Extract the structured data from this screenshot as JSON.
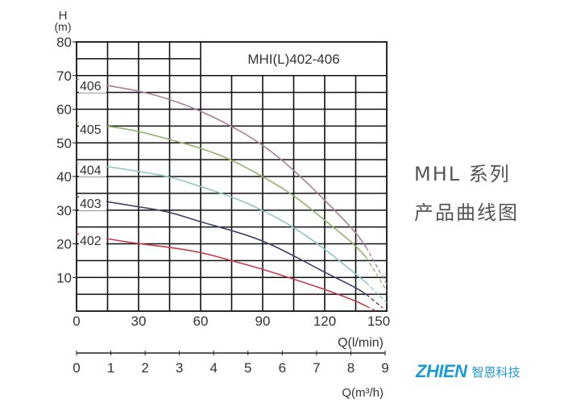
{
  "chart_data": {
    "type": "line",
    "title": "MHI(L)402-406",
    "ylabel_top": "H",
    "ylabel_unit": "(m)",
    "xlabel": "Q(l/min)",
    "xlabel2": "Q(m³/h)",
    "xlim": [
      0,
      150
    ],
    "ylim": [
      0,
      80
    ],
    "x2lim": [
      0,
      9
    ],
    "grid": true,
    "x_ticks": [
      "0",
      "30",
      "60",
      "90",
      "120",
      "150"
    ],
    "y_ticks": [
      "10",
      "20",
      "30",
      "40",
      "50",
      "60",
      "70",
      "80"
    ],
    "x2_ticks": [
      "0",
      "1",
      "2",
      "3",
      "4",
      "5",
      "6",
      "7",
      "8",
      "9"
    ],
    "series": [
      {
        "name": "406",
        "color": "#a8809a",
        "x": [
          0,
          15,
          30,
          45,
          60,
          75,
          90,
          105,
          120,
          135,
          140
        ],
        "y": [
          69,
          67,
          65.5,
          63,
          59.5,
          55,
          49.5,
          42,
          33,
          23.5,
          19
        ],
        "dash_end": [
          [
            140,
            19
          ],
          [
            150,
            8
          ]
        ]
      },
      {
        "name": "405",
        "color": "#8db46a",
        "x": [
          0,
          15,
          30,
          45,
          60,
          75,
          90,
          105,
          120,
          135,
          140
        ],
        "y": [
          56,
          55,
          53.5,
          51,
          48.5,
          45,
          40,
          34.5,
          27,
          19.5,
          16
        ],
        "dash_end": [
          [
            140,
            16
          ],
          [
            150,
            6
          ]
        ]
      },
      {
        "name": "404",
        "color": "#8cc6c8",
        "x": [
          0,
          15,
          30,
          45,
          60,
          75,
          90,
          105,
          120,
          135,
          140
        ],
        "y": [
          44,
          43,
          41.5,
          40,
          37,
          34,
          30,
          25,
          18.5,
          11,
          8.5
        ],
        "dash_end": [
          [
            140,
            8.5
          ],
          [
            150,
            2.5
          ]
        ]
      },
      {
        "name": "403",
        "color": "#3d416c",
        "x": [
          0,
          15,
          30,
          45,
          60,
          75,
          90,
          105,
          120,
          135,
          140
        ],
        "y": [
          34,
          32.5,
          31,
          29.5,
          26.5,
          24,
          21,
          16.5,
          11.5,
          7,
          5
        ],
        "dash_end": [
          [
            140,
            5
          ],
          [
            148,
            1
          ]
        ]
      },
      {
        "name": "402",
        "color": "#c83a4c",
        "x": [
          0,
          15,
          30,
          45,
          60,
          75,
          90,
          105,
          120,
          135,
          140
        ],
        "y": [
          23,
          21.5,
          20,
          19,
          17.5,
          15,
          12.5,
          9.5,
          6.5,
          3,
          1.5
        ],
        "dash_end": [
          [
            140,
            1.5
          ],
          [
            145,
            0
          ]
        ]
      }
    ]
  },
  "side_text": {
    "line1": "MHL 系列",
    "line2": "产品曲线图"
  },
  "logo": {
    "en": "ZHIEN",
    "cn": "智恩科技",
    "color": "#1b9ad8"
  }
}
